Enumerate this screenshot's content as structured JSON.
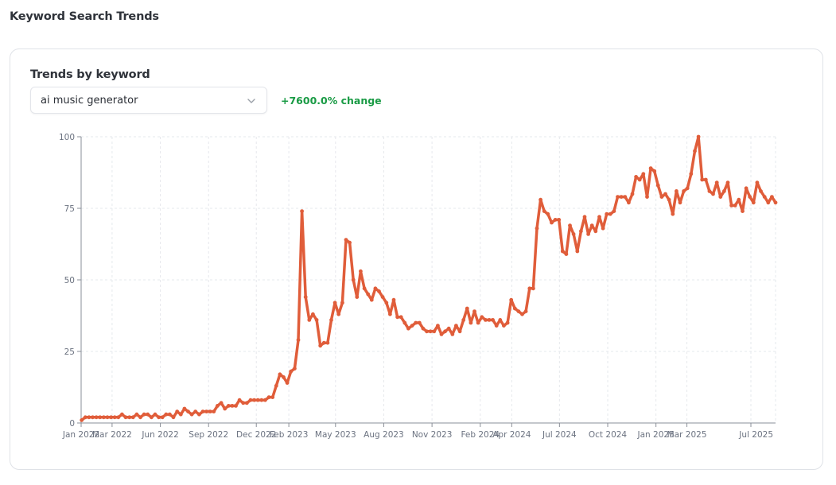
{
  "page": {
    "title": "Keyword Search Trends"
  },
  "card": {
    "title": "Trends by keyword",
    "select": {
      "value": "ai music generator",
      "icon": "chevron-down-icon"
    },
    "change": "+7600.0% change"
  },
  "colors": {
    "line": "#e05d3a",
    "change": "#1a9b45",
    "grid": "#e6e8ec"
  },
  "chart_data": {
    "type": "line",
    "title": "",
    "xlabel": "",
    "ylabel": "",
    "ylim": [
      0,
      100
    ],
    "y_ticks": [
      0,
      25,
      50,
      75,
      100
    ],
    "x_ticks": [
      "Jan 2022",
      "Mar 2022",
      "Jun 2022",
      "Sep 2022",
      "Dec 2022",
      "Feb 2023",
      "May 2023",
      "Aug 2023",
      "Nov 2023",
      "Feb 2024",
      "Apr 2024",
      "Jul 2024",
      "Oct 2024",
      "Jan 2025",
      "Mar 2025",
      "Jul 2025"
    ],
    "x_tick_dates": [
      "2022-01-01",
      "2022-03-01",
      "2022-06-01",
      "2022-09-01",
      "2022-12-01",
      "2023-02-01",
      "2023-05-01",
      "2023-08-01",
      "2023-11-01",
      "2024-02-01",
      "2024-04-01",
      "2024-07-01",
      "2024-10-01",
      "2025-01-01",
      "2025-03-01",
      "2025-07-01"
    ],
    "grid": true,
    "series": [
      {
        "values": [
          [
            "2022-01-02",
            1
          ],
          [
            "2022-01-09",
            2
          ],
          [
            "2022-01-16",
            2
          ],
          [
            "2022-01-23",
            2
          ],
          [
            "2022-01-30",
            2
          ],
          [
            "2022-02-06",
            2
          ],
          [
            "2022-02-13",
            2
          ],
          [
            "2022-02-20",
            2
          ],
          [
            "2022-02-27",
            2
          ],
          [
            "2022-03-06",
            2
          ],
          [
            "2022-03-13",
            2
          ],
          [
            "2022-03-20",
            3
          ],
          [
            "2022-03-27",
            2
          ],
          [
            "2022-04-03",
            2
          ],
          [
            "2022-04-10",
            2
          ],
          [
            "2022-04-17",
            3
          ],
          [
            "2022-04-24",
            2
          ],
          [
            "2022-05-01",
            3
          ],
          [
            "2022-05-08",
            3
          ],
          [
            "2022-05-15",
            2
          ],
          [
            "2022-05-22",
            3
          ],
          [
            "2022-05-29",
            2
          ],
          [
            "2022-06-05",
            2
          ],
          [
            "2022-06-12",
            3
          ],
          [
            "2022-06-19",
            3
          ],
          [
            "2022-06-26",
            2
          ],
          [
            "2022-07-03",
            4
          ],
          [
            "2022-07-10",
            3
          ],
          [
            "2022-07-17",
            5
          ],
          [
            "2022-07-24",
            4
          ],
          [
            "2022-07-31",
            3
          ],
          [
            "2022-08-07",
            4
          ],
          [
            "2022-08-14",
            3
          ],
          [
            "2022-08-21",
            4
          ],
          [
            "2022-08-28",
            4
          ],
          [
            "2022-09-04",
            4
          ],
          [
            "2022-09-11",
            4
          ],
          [
            "2022-09-18",
            6
          ],
          [
            "2022-09-25",
            7
          ],
          [
            "2022-10-02",
            5
          ],
          [
            "2022-10-09",
            6
          ],
          [
            "2022-10-16",
            6
          ],
          [
            "2022-10-23",
            6
          ],
          [
            "2022-10-30",
            8
          ],
          [
            "2022-11-06",
            7
          ],
          [
            "2022-11-13",
            7
          ],
          [
            "2022-11-20",
            8
          ],
          [
            "2022-11-27",
            8
          ],
          [
            "2022-12-04",
            8
          ],
          [
            "2022-12-11",
            8
          ],
          [
            "2022-12-18",
            8
          ],
          [
            "2022-12-25",
            9
          ],
          [
            "2023-01-01",
            9
          ],
          [
            "2023-01-08",
            13
          ],
          [
            "2023-01-15",
            17
          ],
          [
            "2023-01-22",
            16
          ],
          [
            "2023-01-29",
            14
          ],
          [
            "2023-02-05",
            18
          ],
          [
            "2023-02-12",
            19
          ],
          [
            "2023-02-19",
            29
          ],
          [
            "2023-02-26",
            74
          ],
          [
            "2023-03-05",
            44
          ],
          [
            "2023-03-12",
            36
          ],
          [
            "2023-03-19",
            38
          ],
          [
            "2023-03-26",
            36
          ],
          [
            "2023-04-02",
            27
          ],
          [
            "2023-04-09",
            28
          ],
          [
            "2023-04-16",
            28
          ],
          [
            "2023-04-23",
            36
          ],
          [
            "2023-04-30",
            42
          ],
          [
            "2023-05-07",
            38
          ],
          [
            "2023-05-14",
            42
          ],
          [
            "2023-05-21",
            64
          ],
          [
            "2023-05-28",
            63
          ],
          [
            "2023-06-04",
            50
          ],
          [
            "2023-06-11",
            44
          ],
          [
            "2023-06-18",
            53
          ],
          [
            "2023-06-25",
            47
          ],
          [
            "2023-07-02",
            45
          ],
          [
            "2023-07-09",
            43
          ],
          [
            "2023-07-16",
            47
          ],
          [
            "2023-07-23",
            46
          ],
          [
            "2023-07-30",
            44
          ],
          [
            "2023-08-06",
            42
          ],
          [
            "2023-08-13",
            38
          ],
          [
            "2023-08-20",
            43
          ],
          [
            "2023-08-27",
            37
          ],
          [
            "2023-09-03",
            37
          ],
          [
            "2023-09-10",
            35
          ],
          [
            "2023-09-17",
            33
          ],
          [
            "2023-09-24",
            34
          ],
          [
            "2023-10-01",
            35
          ],
          [
            "2023-10-08",
            35
          ],
          [
            "2023-10-15",
            33
          ],
          [
            "2023-10-22",
            32
          ],
          [
            "2023-10-29",
            32
          ],
          [
            "2023-11-05",
            32
          ],
          [
            "2023-11-12",
            34
          ],
          [
            "2023-11-19",
            31
          ],
          [
            "2023-11-26",
            32
          ],
          [
            "2023-12-03",
            33
          ],
          [
            "2023-12-10",
            31
          ],
          [
            "2023-12-17",
            34
          ],
          [
            "2023-12-24",
            32
          ],
          [
            "2023-12-31",
            36
          ],
          [
            "2024-01-07",
            40
          ],
          [
            "2024-01-14",
            35
          ],
          [
            "2024-01-21",
            39
          ],
          [
            "2024-01-28",
            35
          ],
          [
            "2024-02-04",
            37
          ],
          [
            "2024-02-11",
            36
          ],
          [
            "2024-02-18",
            36
          ],
          [
            "2024-02-25",
            36
          ],
          [
            "2024-03-03",
            34
          ],
          [
            "2024-03-10",
            36
          ],
          [
            "2024-03-17",
            34
          ],
          [
            "2024-03-24",
            35
          ],
          [
            "2024-03-31",
            43
          ],
          [
            "2024-04-07",
            40
          ],
          [
            "2024-04-14",
            39
          ],
          [
            "2024-04-21",
            38
          ],
          [
            "2024-04-28",
            39
          ],
          [
            "2024-05-05",
            47
          ],
          [
            "2024-05-12",
            47
          ],
          [
            "2024-05-19",
            68
          ],
          [
            "2024-05-26",
            78
          ],
          [
            "2024-06-02",
            74
          ],
          [
            "2024-06-09",
            73
          ],
          [
            "2024-06-16",
            70
          ],
          [
            "2024-06-23",
            71
          ],
          [
            "2024-06-30",
            71
          ],
          [
            "2024-07-07",
            60
          ],
          [
            "2024-07-14",
            59
          ],
          [
            "2024-07-21",
            69
          ],
          [
            "2024-07-28",
            66
          ],
          [
            "2024-08-04",
            60
          ],
          [
            "2024-08-11",
            67
          ],
          [
            "2024-08-18",
            72
          ],
          [
            "2024-08-25",
            66
          ],
          [
            "2024-09-01",
            69
          ],
          [
            "2024-09-08",
            67
          ],
          [
            "2024-09-15",
            72
          ],
          [
            "2024-09-22",
            68
          ],
          [
            "2024-09-29",
            73
          ],
          [
            "2024-10-06",
            73
          ],
          [
            "2024-10-13",
            74
          ],
          [
            "2024-10-20",
            79
          ],
          [
            "2024-10-27",
            79
          ],
          [
            "2024-11-03",
            79
          ],
          [
            "2024-11-10",
            77
          ],
          [
            "2024-11-17",
            80
          ],
          [
            "2024-11-24",
            86
          ],
          [
            "2024-12-01",
            85
          ],
          [
            "2024-12-08",
            87
          ],
          [
            "2024-12-15",
            79
          ],
          [
            "2024-12-22",
            89
          ],
          [
            "2024-12-29",
            88
          ],
          [
            "2025-01-05",
            83
          ],
          [
            "2025-01-12",
            79
          ],
          [
            "2025-01-19",
            80
          ],
          [
            "2025-01-26",
            78
          ],
          [
            "2025-02-02",
            73
          ],
          [
            "2025-02-09",
            81
          ],
          [
            "2025-02-16",
            77
          ],
          [
            "2025-02-23",
            81
          ],
          [
            "2025-03-02",
            82
          ],
          [
            "2025-03-09",
            87
          ],
          [
            "2025-03-16",
            95
          ],
          [
            "2025-03-23",
            100
          ],
          [
            "2025-03-30",
            85
          ],
          [
            "2025-04-06",
            85
          ],
          [
            "2025-04-13",
            81
          ],
          [
            "2025-04-20",
            80
          ],
          [
            "2025-04-27",
            84
          ],
          [
            "2025-05-04",
            79
          ],
          [
            "2025-05-11",
            81
          ],
          [
            "2025-05-18",
            84
          ],
          [
            "2025-05-25",
            76
          ],
          [
            "2025-06-01",
            76
          ],
          [
            "2025-06-08",
            78
          ],
          [
            "2025-06-15",
            74
          ],
          [
            "2025-06-22",
            82
          ],
          [
            "2025-06-29",
            79
          ],
          [
            "2025-07-06",
            77
          ],
          [
            "2025-07-13",
            84
          ],
          [
            "2025-07-20",
            81
          ],
          [
            "2025-07-27",
            79
          ],
          [
            "2025-08-03",
            77
          ],
          [
            "2025-08-10",
            79
          ],
          [
            "2025-08-17",
            77
          ]
        ]
      }
    ]
  }
}
